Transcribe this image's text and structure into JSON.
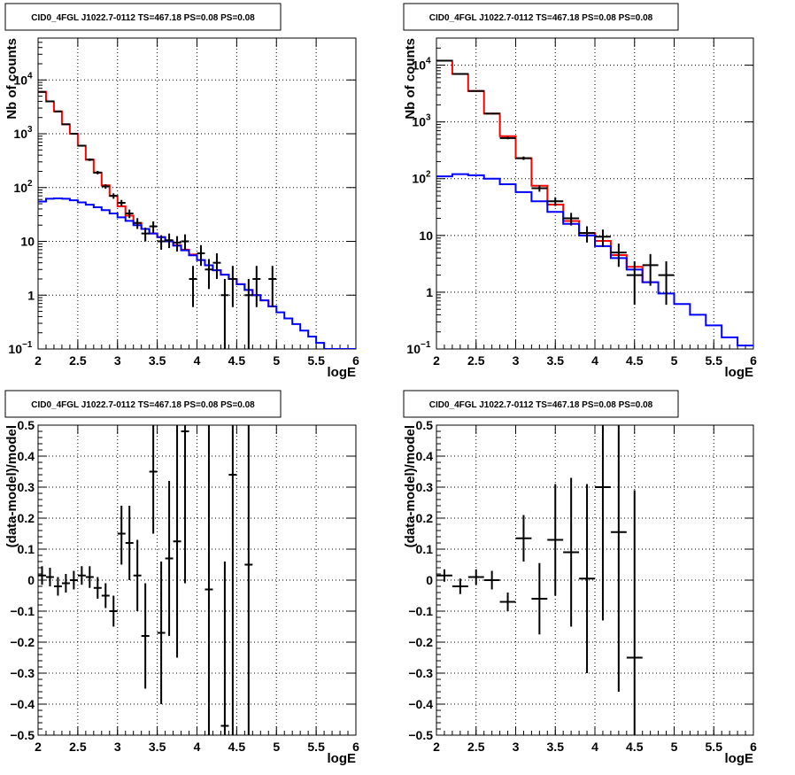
{
  "colors": {
    "data": "#000000",
    "total_model": "#ff0000",
    "component_model": "#0000ff",
    "grid": "#000000"
  },
  "chart_data": [
    {
      "type": "line",
      "title": "CID0_4FGL J1022.7-0112 TS=467.18 PS=0.08 PS=0.08",
      "xlabel": "logE",
      "ylabel": "Nb of counts",
      "xlim": [
        2,
        6
      ],
      "ylim": [
        0.1,
        60000
      ],
      "y_scale": "log",
      "grid": true,
      "x_ticks": [
        "2",
        "2.5",
        "3",
        "3.5",
        "4",
        "4.5",
        "5",
        "5.5",
        "6"
      ],
      "y_ticks": [
        {
          "value": 0.1,
          "label": "10",
          "sup": "−1"
        },
        {
          "value": 1,
          "label": "1",
          "sup": ""
        },
        {
          "value": 10,
          "label": "10",
          "sup": ""
        },
        {
          "value": 100,
          "label": "10",
          "sup": "2"
        },
        {
          "value": 1000,
          "label": "10",
          "sup": "3"
        },
        {
          "value": 10000,
          "label": "10",
          "sup": "4"
        }
      ],
      "bin_edges": [
        2,
        2.1,
        2.2,
        2.3,
        2.4,
        2.5,
        2.6,
        2.7,
        2.8,
        2.9,
        3,
        3.1,
        3.2,
        3.3,
        3.4,
        3.5,
        3.6,
        3.7,
        3.8,
        3.9,
        4,
        4.1,
        4.2,
        4.3,
        4.4,
        4.5,
        4.6,
        4.7,
        4.8,
        4.9,
        5,
        5.1,
        5.2,
        5.3,
        5.4,
        5.5,
        5.6,
        5.7,
        5.8,
        5.9,
        6
      ],
      "series": [
        {
          "role": "total_model",
          "values": [
            6000,
            4000,
            2600,
            1500,
            1000,
            600,
            330,
            190,
            110,
            70,
            45,
            30,
            22,
            17,
            14,
            12,
            10,
            8.5,
            7,
            5.7,
            4.5,
            3.6,
            2.9,
            2.4,
            2.0,
            1.6,
            1.25,
            1.0,
            0.8,
            0.62
          ]
        },
        {
          "role": "component_model",
          "values": [
            55,
            62,
            63,
            62,
            58,
            53,
            48,
            43,
            38,
            33,
            28,
            24,
            20,
            17,
            14,
            12,
            10,
            8.3,
            6.8,
            5.5,
            4.5,
            3.6,
            2.9,
            2.4,
            2.0,
            1.6,
            1.25,
            1.0,
            0.8,
            0.62,
            0.48,
            0.37,
            0.29,
            0.22,
            0.17,
            0.13,
            0.1,
            0.1,
            0.1,
            0.1
          ]
        }
      ],
      "data_points": [
        {
          "x": 2.05,
          "y": 6000,
          "lo": 5900,
          "hi": 6100
        },
        {
          "x": 2.15,
          "y": 4000,
          "lo": 3900,
          "hi": 4100
        },
        {
          "x": 2.25,
          "y": 2600,
          "lo": 2550,
          "hi": 2650
        },
        {
          "x": 2.35,
          "y": 1500,
          "lo": 1460,
          "hi": 1540
        },
        {
          "x": 2.45,
          "y": 1000,
          "lo": 970,
          "hi": 1030
        },
        {
          "x": 2.55,
          "y": 600,
          "lo": 575,
          "hi": 625
        },
        {
          "x": 2.65,
          "y": 330,
          "lo": 312,
          "hi": 348
        },
        {
          "x": 2.75,
          "y": 190,
          "lo": 176,
          "hi": 204
        },
        {
          "x": 2.85,
          "y": 105,
          "lo": 95,
          "hi": 115
        },
        {
          "x": 2.95,
          "y": 70,
          "lo": 62,
          "hi": 78
        },
        {
          "x": 3.05,
          "y": 52,
          "lo": 45,
          "hi": 59
        },
        {
          "x": 3.15,
          "y": 33,
          "lo": 27,
          "hi": 39
        },
        {
          "x": 3.25,
          "y": 22,
          "lo": 17,
          "hi": 27
        },
        {
          "x": 3.35,
          "y": 14,
          "lo": 10,
          "hi": 18
        },
        {
          "x": 3.45,
          "y": 19,
          "lo": 14.5,
          "hi": 23.5
        },
        {
          "x": 3.55,
          "y": 10,
          "lo": 7,
          "hi": 13
        },
        {
          "x": 3.65,
          "y": 10.5,
          "lo": 7.5,
          "hi": 14
        },
        {
          "x": 3.75,
          "y": 9.5,
          "lo": 6.5,
          "hi": 12.5
        },
        {
          "x": 3.85,
          "y": 10,
          "lo": 7,
          "hi": 13.5
        },
        {
          "x": 3.95,
          "y": 2,
          "lo": 0.6,
          "hi": 3.5
        },
        {
          "x": 4.05,
          "y": 6,
          "lo": 3.5,
          "hi": 8.5
        },
        {
          "x": 4.15,
          "y": 3,
          "lo": 1.3,
          "hi": 4.7
        },
        {
          "x": 4.25,
          "y": 4,
          "lo": 2,
          "hi": 6
        },
        {
          "x": 4.35,
          "y": 1,
          "lo": 0.1,
          "hi": 2
        },
        {
          "x": 4.45,
          "y": 2,
          "lo": 0.6,
          "hi": 3.5
        },
        {
          "x": 4.65,
          "y": 1,
          "lo": 0.1,
          "hi": 2
        },
        {
          "x": 4.75,
          "y": 2,
          "lo": 0.6,
          "hi": 3.5
        },
        {
          "x": 4.95,
          "y": 2,
          "lo": 0.6,
          "hi": 3.5
        }
      ]
    },
    {
      "type": "line",
      "title": "CID0_4FGL J1022.7-0112 TS=467.18 PS=0.08 PS=0.08",
      "xlabel": "logE",
      "ylabel": "Nb of counts",
      "xlim": [
        2,
        6
      ],
      "ylim": [
        0.1,
        30000
      ],
      "y_scale": "log",
      "grid": true,
      "x_ticks": [
        "2",
        "2.5",
        "3",
        "3.5",
        "4",
        "4.5",
        "5",
        "5.5",
        "6"
      ],
      "y_ticks": [
        {
          "value": 0.1,
          "label": "10",
          "sup": "−1"
        },
        {
          "value": 1,
          "label": "1",
          "sup": ""
        },
        {
          "value": 10,
          "label": "10",
          "sup": ""
        },
        {
          "value": 100,
          "label": "10",
          "sup": "2"
        },
        {
          "value": 1000,
          "label": "10",
          "sup": "3"
        },
        {
          "value": 10000,
          "label": "10",
          "sup": "4"
        }
      ],
      "bin_edges": [
        2,
        2.2,
        2.4,
        2.6,
        2.8,
        3,
        3.2,
        3.4,
        3.6,
        3.8,
        4,
        4.2,
        4.4,
        4.6,
        4.8,
        5,
        5.2,
        5.4,
        5.6,
        5.8,
        6
      ],
      "series": [
        {
          "role": "total_model",
          "values": [
            12000,
            7000,
            3500,
            1400,
            560,
            230,
            75,
            35,
            18,
            11,
            8,
            4.5,
            2.8,
            1.5
          ]
        },
        {
          "role": "component_model",
          "values": [
            110,
            120,
            115,
            100,
            80,
            58,
            40,
            26,
            16,
            10,
            6.5,
            4,
            2.5,
            1.5,
            0.95,
            0.62,
            0.4,
            0.26,
            0.16,
            0.115
          ]
        }
      ],
      "data_points": [
        {
          "x": 2.1,
          "y": 12000,
          "lo": 11880,
          "hi": 12120
        },
        {
          "x": 2.3,
          "y": 7000,
          "lo": 6910,
          "hi": 7090
        },
        {
          "x": 2.5,
          "y": 3500,
          "lo": 3440,
          "hi": 3560
        },
        {
          "x": 2.7,
          "y": 1400,
          "lo": 1360,
          "hi": 1440
        },
        {
          "x": 2.9,
          "y": 520,
          "lo": 495,
          "hi": 545
        },
        {
          "x": 3.1,
          "y": 230,
          "lo": 214,
          "hi": 246
        },
        {
          "x": 3.3,
          "y": 68,
          "lo": 59,
          "hi": 77
        },
        {
          "x": 3.5,
          "y": 40,
          "lo": 33,
          "hi": 47
        },
        {
          "x": 3.7,
          "y": 20,
          "lo": 15,
          "hi": 25
        },
        {
          "x": 3.9,
          "y": 11,
          "lo": 7.5,
          "hi": 14.5
        },
        {
          "x": 4.1,
          "y": 9.5,
          "lo": 6.3,
          "hi": 12.7
        },
        {
          "x": 4.3,
          "y": 5,
          "lo": 2.8,
          "hi": 7.2
        },
        {
          "x": 4.5,
          "y": 2,
          "lo": 0.6,
          "hi": 3.5
        },
        {
          "x": 4.7,
          "y": 3,
          "lo": 1.3,
          "hi": 4.7
        },
        {
          "x": 4.9,
          "y": 2,
          "lo": 0.6,
          "hi": 3.5
        }
      ]
    },
    {
      "type": "scatter",
      "title": "CID0_4FGL J1022.7-0112 TS=467.18 PS=0.08 PS=0.08",
      "xlabel": "logE",
      "ylabel": "(data-model)/model",
      "xlim": [
        2,
        6
      ],
      "ylim": [
        -0.5,
        0.5
      ],
      "y_scale": "linear",
      "grid": true,
      "x_ticks": [
        "2",
        "2.5",
        "3",
        "3.5",
        "4",
        "4.5",
        "5",
        "5.5",
        "6"
      ],
      "y_ticks": [
        {
          "value": -0.5,
          "label": "−0.5"
        },
        {
          "value": -0.4,
          "label": "−0.4"
        },
        {
          "value": -0.3,
          "label": "−0.3"
        },
        {
          "value": -0.2,
          "label": "−0.2"
        },
        {
          "value": -0.1,
          "label": "−0.1"
        },
        {
          "value": 0,
          "label": "0"
        },
        {
          "value": 0.1,
          "label": "0.1"
        },
        {
          "value": 0.2,
          "label": "0.2"
        },
        {
          "value": 0.3,
          "label": "0.3"
        },
        {
          "value": 0.4,
          "label": "0.4"
        },
        {
          "value": 0.5,
          "label": "0.5"
        }
      ],
      "half_width": 0.05,
      "data_points": [
        {
          "x": 2.05,
          "y": 0.015,
          "lo": -0.015,
          "hi": 0.045
        },
        {
          "x": 2.15,
          "y": 0.01,
          "lo": -0.02,
          "hi": 0.04
        },
        {
          "x": 2.25,
          "y": -0.02,
          "lo": -0.05,
          "hi": 0.01
        },
        {
          "x": 2.35,
          "y": -0.01,
          "lo": -0.04,
          "hi": 0.02
        },
        {
          "x": 2.45,
          "y": 0.0,
          "lo": -0.03,
          "hi": 0.03
        },
        {
          "x": 2.55,
          "y": 0.015,
          "lo": -0.015,
          "hi": 0.045
        },
        {
          "x": 2.65,
          "y": 0.01,
          "lo": -0.025,
          "hi": 0.045
        },
        {
          "x": 2.75,
          "y": -0.025,
          "lo": -0.06,
          "hi": 0.01
        },
        {
          "x": 2.85,
          "y": -0.05,
          "lo": -0.09,
          "hi": -0.01
        },
        {
          "x": 2.95,
          "y": -0.1,
          "lo": -0.15,
          "hi": -0.05
        },
        {
          "x": 3.05,
          "y": 0.15,
          "lo": 0.05,
          "hi": 0.24
        },
        {
          "x": 3.15,
          "y": 0.12,
          "lo": 0.0,
          "hi": 0.24
        },
        {
          "x": 3.25,
          "y": 0.015,
          "lo": -0.1,
          "hi": 0.13
        },
        {
          "x": 3.35,
          "y": -0.18,
          "lo": -0.35,
          "hi": -0.01
        },
        {
          "x": 3.45,
          "y": 0.35,
          "lo": 0.15,
          "hi": 0.5
        },
        {
          "x": 3.55,
          "y": -0.17,
          "lo": -0.4,
          "hi": 0.06
        },
        {
          "x": 3.65,
          "y": 0.07,
          "lo": -0.18,
          "hi": 0.32
        },
        {
          "x": 3.75,
          "y": 0.125,
          "lo": -0.25,
          "hi": 0.5
        },
        {
          "x": 3.85,
          "y": 0.48,
          "lo": -0.01,
          "hi": 0.5
        },
        {
          "x": 4.15,
          "y": -0.03,
          "lo": -0.5,
          "hi": 0.5
        },
        {
          "x": 4.35,
          "y": -0.47,
          "lo": -0.5,
          "hi": 0.06
        },
        {
          "x": 4.45,
          "y": 0.34,
          "lo": -0.5,
          "hi": 0.5
        },
        {
          "x": 4.65,
          "y": 0.05,
          "lo": -0.5,
          "hi": 0.5
        }
      ]
    },
    {
      "type": "scatter",
      "title": "CID0_4FGL J1022.7-0112 TS=467.18 PS=0.08 PS=0.08",
      "xlabel": "logE",
      "ylabel": "(data-model)/model",
      "xlim": [
        2,
        6
      ],
      "ylim": [
        -0.5,
        0.5
      ],
      "y_scale": "linear",
      "grid": true,
      "x_ticks": [
        "2",
        "2.5",
        "3",
        "3.5",
        "4",
        "4.5",
        "5",
        "5.5",
        "6"
      ],
      "y_ticks": [
        {
          "value": -0.5,
          "label": "−0.5"
        },
        {
          "value": -0.4,
          "label": "−0.4"
        },
        {
          "value": -0.3,
          "label": "−0.3"
        },
        {
          "value": -0.2,
          "label": "−0.2"
        },
        {
          "value": -0.1,
          "label": "−0.1"
        },
        {
          "value": 0,
          "label": "0"
        },
        {
          "value": 0.1,
          "label": "0.1"
        },
        {
          "value": 0.2,
          "label": "0.2"
        },
        {
          "value": 0.3,
          "label": "0.3"
        },
        {
          "value": 0.4,
          "label": "0.4"
        },
        {
          "value": 0.5,
          "label": "0.5"
        }
      ],
      "half_width": 0.1,
      "data_points": [
        {
          "x": 2.1,
          "y": 0.015,
          "lo": -0.005,
          "hi": 0.035
        },
        {
          "x": 2.3,
          "y": -0.02,
          "lo": -0.045,
          "hi": 0.005
        },
        {
          "x": 2.5,
          "y": 0.01,
          "lo": -0.015,
          "hi": 0.035
        },
        {
          "x": 2.7,
          "y": 0.0,
          "lo": -0.03,
          "hi": 0.03
        },
        {
          "x": 2.9,
          "y": -0.07,
          "lo": -0.1,
          "hi": -0.04
        },
        {
          "x": 3.1,
          "y": 0.135,
          "lo": 0.06,
          "hi": 0.21
        },
        {
          "x": 3.3,
          "y": -0.06,
          "lo": -0.175,
          "hi": 0.055
        },
        {
          "x": 3.5,
          "y": 0.13,
          "lo": -0.05,
          "hi": 0.31
        },
        {
          "x": 3.7,
          "y": 0.09,
          "lo": -0.15,
          "hi": 0.33
        },
        {
          "x": 3.9,
          "y": 0.005,
          "lo": -0.3,
          "hi": 0.31
        },
        {
          "x": 4.1,
          "y": 0.3,
          "lo": -0.13,
          "hi": 0.5
        },
        {
          "x": 4.3,
          "y": 0.155,
          "lo": -0.36,
          "hi": 0.5
        },
        {
          "x": 4.5,
          "y": -0.25,
          "lo": -0.5,
          "hi": 0.29
        }
      ]
    }
  ]
}
